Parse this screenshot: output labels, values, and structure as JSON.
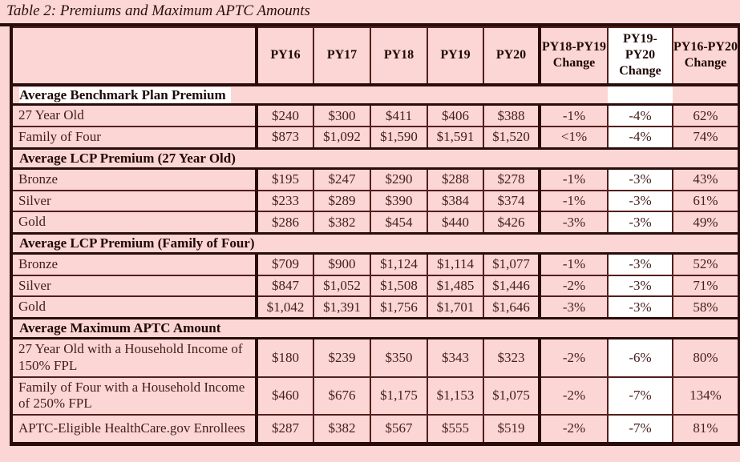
{
  "title": "Table 2: Premiums and Maximum APTC Amounts",
  "colors": {
    "page_bg": "#FBD6D4",
    "highlight": "#FFFFFF",
    "border_thick": "#2A0C0A",
    "border_thin": "#521F1C",
    "text": "#44201C",
    "text_bold": "#1F0806"
  },
  "table": {
    "columns": [
      "",
      "PY16",
      "PY17",
      "PY18",
      "PY19",
      "PY20",
      "PY18-PY19 Change",
      "PY19-PY20 Change",
      "PY16-PY20 Change"
    ],
    "sections": [
      {
        "header": "Average Benchmark Plan Premium",
        "rows": [
          {
            "cells": [
              "27 Year Old",
              "$240",
              "$300",
              "$411",
              "$406",
              "$388",
              "-1%",
              "-4%",
              "62%"
            ]
          },
          {
            "cells": [
              "Family of Four",
              "$873",
              "$1,092",
              "$1,590",
              "$1,591",
              "$1,520",
              "<1%",
              "-4%",
              "74%"
            ]
          }
        ]
      },
      {
        "header": "Average LCP Premium (27 Year Old)",
        "rows": [
          {
            "cells": [
              "Bronze",
              "$195",
              "$247",
              "$290",
              "$288",
              "$278",
              "-1%",
              "-3%",
              "43%"
            ]
          },
          {
            "cells": [
              "Silver",
              "$233",
              "$289",
              "$390",
              "$384",
              "$374",
              "-1%",
              "-3%",
              "61%"
            ]
          },
          {
            "cells": [
              "Gold",
              "$286",
              "$382",
              "$454",
              "$440",
              "$426",
              "-3%",
              "-3%",
              "49%"
            ]
          }
        ]
      },
      {
        "header": "Average LCP Premium (Family of Four)",
        "rows": [
          {
            "cells": [
              "Bronze",
              "$709",
              "$900",
              "$1,124",
              "$1,114",
              "$1,077",
              "-1%",
              "-3%",
              "52%"
            ]
          },
          {
            "cells": [
              "Silver",
              "$847",
              "$1,052",
              "$1,508",
              "$1,485",
              "$1,446",
              "-2%",
              "-3%",
              "71%"
            ]
          },
          {
            "cells": [
              "Gold",
              "$1,042",
              "$1,391",
              "$1,756",
              "$1,701",
              "$1,646",
              "-3%",
              "-3%",
              "58%"
            ]
          }
        ]
      },
      {
        "header": "Average Maximum APTC Amount",
        "rows": [
          {
            "cells": [
              "27 Year Old with a Household Income of 150% FPL",
              "$180",
              "$239",
              "$350",
              "$343",
              "$323",
              "-2%",
              "-6%",
              "80%"
            ]
          },
          {
            "cells": [
              "Family of Four with a Household Income of 250% FPL",
              "$460",
              "$676",
              "$1,175",
              "$1,153",
              "$1,075",
              "-2%",
              "-7%",
              "134%"
            ]
          },
          {
            "cells": [
              "APTC-Eligible HealthCare.gov Enrollees",
              "$287",
              "$382",
              "$567",
              "$555",
              "$519",
              "-2%",
              "-7%",
              "81%"
            ]
          }
        ]
      }
    ]
  }
}
